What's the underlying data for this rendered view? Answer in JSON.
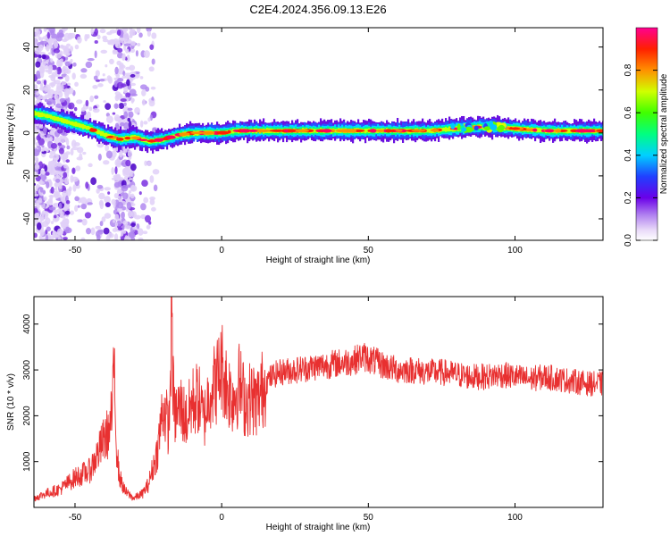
{
  "title": "C2E4.2024.356.09.13.E26",
  "colorbar": {
    "label": "Normalized spectral amplitude",
    "ticks": [
      "0.0",
      "0.2",
      "0.4",
      "0.6",
      "0.8"
    ],
    "tick_values": [
      0.0,
      0.2,
      0.4,
      0.6,
      0.8
    ],
    "range": [
      0,
      1
    ],
    "colormap": [
      "#ffffff",
      "#e8d8f8",
      "#b080f0",
      "#6a00e8",
      "#2040ff",
      "#00d0ff",
      "#00ff80",
      "#40ff00",
      "#d0ff00",
      "#ff9000",
      "#ff2000",
      "#ff0090"
    ]
  },
  "chart_data": [
    {
      "type": "heatmap",
      "xlabel": "Height of straight line (km)",
      "ylabel": "Frequency (Hz)",
      "xlim": [
        -64,
        130
      ],
      "ylim": [
        -50,
        49
      ],
      "xticks": [
        -50,
        0,
        50,
        100
      ],
      "xtick_labels": [
        "-50",
        "0",
        "50",
        "100"
      ],
      "yticks": [
        -40,
        -20,
        0,
        20,
        40
      ],
      "ytick_labels": [
        "-40",
        "-20",
        "0",
        "20",
        "40"
      ],
      "ridge": {
        "x": [
          -64,
          -60,
          -55,
          -50,
          -45,
          -40,
          -35,
          -30,
          -25,
          -20,
          -15,
          -10,
          -5,
          0,
          5,
          10,
          20,
          30,
          50,
          70,
          80,
          90,
          100,
          110,
          130
        ],
        "y": [
          9,
          8,
          6,
          4,
          2,
          -1,
          -3,
          -2,
          -4,
          -3,
          -1,
          0,
          0,
          0,
          1,
          1,
          1,
          1,
          1,
          1,
          2,
          3,
          2,
          1,
          1
        ]
      }
    },
    {
      "type": "line",
      "xlabel": "Height of straight line (km)",
      "ylabel": "SNR (10 * v/v)",
      "xlim": [
        -64,
        130
      ],
      "ylim": [
        0,
        4600
      ],
      "xticks": [
        -50,
        0,
        50,
        100
      ],
      "xtick_labels": [
        "-50",
        "0",
        "50",
        "100"
      ],
      "yticks": [
        1000,
        2000,
        3000,
        4000
      ],
      "ytick_labels": [
        "1000",
        "2000",
        "3000",
        "4000"
      ],
      "series": [
        {
          "color": "#e83030",
          "x": [
            -64,
            -60,
            -55,
            -50,
            -45,
            -42,
            -40,
            -38,
            -37,
            -36.5,
            -36,
            -35,
            -33,
            -30,
            -27,
            -25,
            -22,
            -20,
            -19,
            -18,
            -17.5,
            -17,
            -16.5,
            -16,
            -14,
            -12,
            -10,
            -8,
            -6,
            -4,
            -2,
            0,
            2,
            4,
            6,
            8,
            10,
            12,
            14,
            16,
            18,
            20,
            25,
            30,
            35,
            40,
            45,
            48,
            50,
            55,
            60,
            65,
            70,
            75,
            80,
            85,
            90,
            95,
            100,
            105,
            110,
            115,
            120,
            125,
            130
          ],
          "y": [
            200,
            300,
            400,
            650,
            800,
            1200,
            1500,
            1700,
            2400,
            3400,
            1500,
            700,
            350,
            200,
            300,
            500,
            1200,
            2200,
            2000,
            1700,
            2800,
            4600,
            2500,
            2000,
            2200,
            1900,
            2300,
            2400,
            1900,
            2600,
            2700,
            3100,
            2600,
            2400,
            2700,
            2300,
            2400,
            2300,
            2600,
            2800,
            2900,
            2950,
            3000,
            3050,
            3100,
            3150,
            3200,
            3300,
            3250,
            3100,
            3000,
            3000,
            2950,
            2950,
            2900,
            2850,
            2850,
            2900,
            2850,
            2800,
            2850,
            2800,
            2750,
            2700,
            2700
          ]
        }
      ]
    }
  ]
}
